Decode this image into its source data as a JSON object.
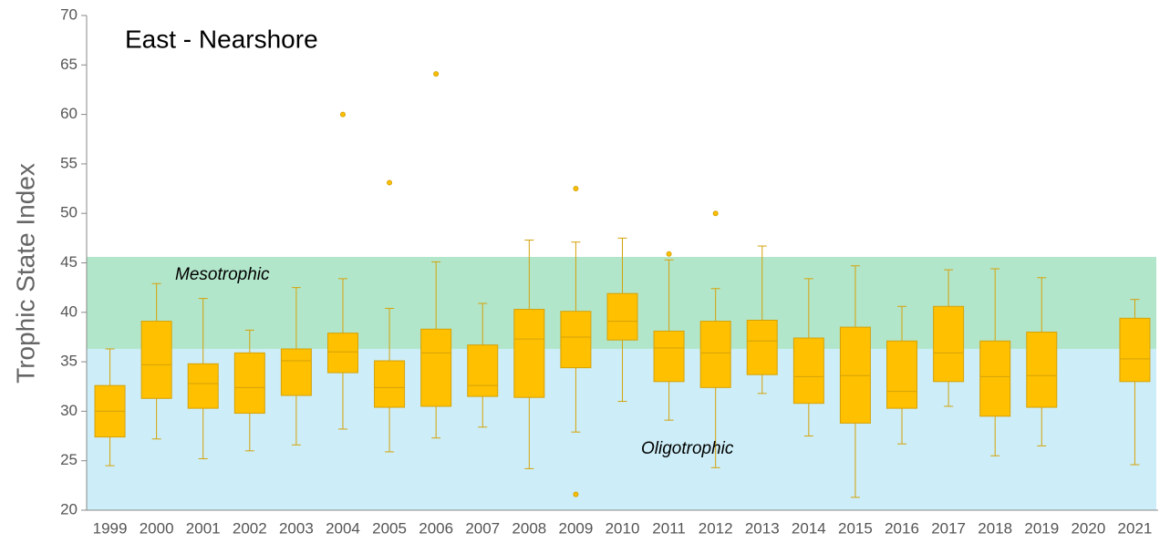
{
  "chart_data": {
    "type": "box",
    "title": "East - Nearshore",
    "y_label": "Trophic State Index",
    "categories": [
      "1999",
      "2000",
      "2001",
      "2002",
      "2003",
      "2004",
      "2005",
      "2006",
      "2007",
      "2008",
      "2009",
      "2010",
      "2011",
      "2012",
      "2013",
      "2014",
      "2015",
      "2016",
      "2017",
      "2018",
      "2019",
      "2020",
      "2021"
    ],
    "min": [
      24.5,
      27.2,
      25.2,
      26.0,
      26.6,
      28.2,
      25.9,
      27.3,
      28.4,
      24.2,
      27.9,
      31.0,
      29.1,
      24.3,
      31.8,
      27.5,
      21.3,
      26.7,
      30.5,
      25.5,
      26.5,
      null,
      24.6
    ],
    "q1": [
      27.4,
      31.3,
      30.3,
      29.8,
      31.6,
      33.9,
      30.4,
      30.5,
      31.5,
      31.4,
      34.4,
      37.2,
      33.0,
      32.4,
      33.7,
      30.8,
      28.8,
      30.3,
      33.0,
      29.5,
      30.4,
      null,
      33.0
    ],
    "median": [
      30.0,
      34.7,
      32.8,
      32.4,
      35.1,
      36.0,
      32.4,
      35.9,
      32.6,
      37.3,
      37.5,
      39.1,
      36.4,
      35.9,
      37.1,
      33.5,
      33.6,
      32.0,
      35.9,
      33.5,
      33.6,
      null,
      35.3
    ],
    "q3": [
      32.6,
      39.1,
      34.8,
      35.9,
      36.3,
      37.9,
      35.1,
      38.3,
      36.7,
      40.3,
      40.1,
      41.9,
      38.1,
      39.1,
      39.2,
      37.4,
      38.5,
      37.1,
      40.6,
      37.1,
      38.0,
      null,
      39.4
    ],
    "max": [
      36.3,
      42.9,
      41.4,
      38.2,
      42.5,
      43.4,
      40.4,
      45.1,
      40.9,
      47.3,
      47.1,
      47.5,
      45.3,
      42.4,
      46.7,
      43.4,
      44.7,
      40.6,
      44.3,
      44.4,
      43.5,
      null,
      41.3
    ],
    "outliers": [
      [],
      [],
      [],
      [],
      [],
      [
        60.0
      ],
      [
        53.1
      ],
      [
        64.1
      ],
      [],
      [],
      [
        52.5,
        21.6
      ],
      [],
      [
        45.9
      ],
      [
        50.0
      ],
      [],
      [],
      [],
      [],
      [],
      [],
      [],
      [],
      []
    ],
    "color": "#ffc000",
    "edge_color": "#d4a20a",
    "bands": [
      {
        "label": "Mesotrophic",
        "from": 36.3,
        "to": 45.6,
        "color": "#b2e6ca"
      },
      {
        "label": "Oligotrophic",
        "from": 20,
        "to": 36.3,
        "color": "#cdeef8"
      }
    ],
    "ylim": [
      20,
      70
    ],
    "yticks": [
      20,
      25,
      30,
      35,
      40,
      45,
      50,
      55,
      60,
      65,
      70
    ]
  }
}
